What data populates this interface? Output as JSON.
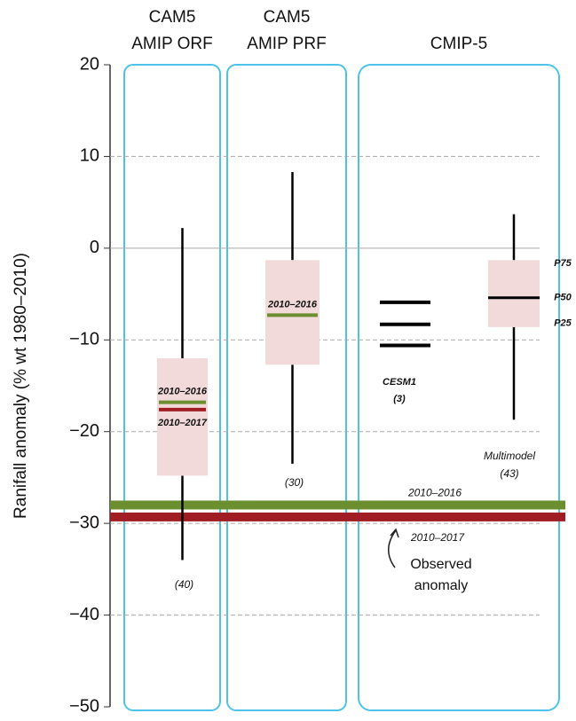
{
  "chart_data": {
    "type": "box",
    "y_label": "Ranifall anomaly (% wt  1980–2010)",
    "ylim": [
      -50,
      20
    ],
    "yticks": [
      20,
      10,
      0,
      {
        "value": -10,
        "label": "−10"
      },
      {
        "value": -20,
        "label": "−20"
      },
      {
        "value": -30,
        "label": "−30"
      },
      {
        "value": -40,
        "label": "−40"
      },
      {
        "value": -50,
        "label": "−50"
      }
    ],
    "grid": true,
    "box_color": "#f3dada",
    "panels": [
      {
        "title": [
          "CAM5",
          "AMIP ORF"
        ]
      },
      {
        "title": [
          "CAM5",
          "AMIP PRF"
        ]
      },
      {
        "title": [
          "CMIP-5"
        ]
      }
    ],
    "boxes": [
      {
        "count_label": "(40)",
        "whisker_high": 2.2,
        "q3": -12,
        "q1": -24.8,
        "whisker_low": -34,
        "periods": [
          {
            "name": "2010–2016",
            "color": "#6b8e2f",
            "value": -16.8
          },
          {
            "name": "2010–2017",
            "color": "#a01d24",
            "value": -17.6
          }
        ]
      },
      {
        "count_label": "(30)",
        "whisker_high": 8.3,
        "q3": -1.3,
        "q1": -12.7,
        "whisker_low": -23.5,
        "periods": [
          {
            "name": "2010–2016",
            "color": "#6b8e2f",
            "value": -7.3
          }
        ]
      },
      {
        "name": "Multimodel",
        "count_label": "(43)",
        "whisker_high": 3.7,
        "q3": -1.3,
        "median": -5.4,
        "q1": -8.6,
        "whisker_low": -18.7,
        "percentile_labels": [
          "P75",
          "P50",
          "P25"
        ]
      }
    ],
    "cesm1": {
      "name": "CESM1",
      "count_label": "(3)",
      "values": [
        -5.9,
        -8.3,
        -10.6
      ]
    },
    "observed": {
      "label": [
        "Observed",
        "anomaly"
      ],
      "periods": [
        {
          "name": "2010–2016",
          "color": "#6b8e2f",
          "value": -28
        },
        {
          "name": "2010–2017",
          "color": "#a01d24",
          "value": -29.3
        }
      ]
    }
  }
}
